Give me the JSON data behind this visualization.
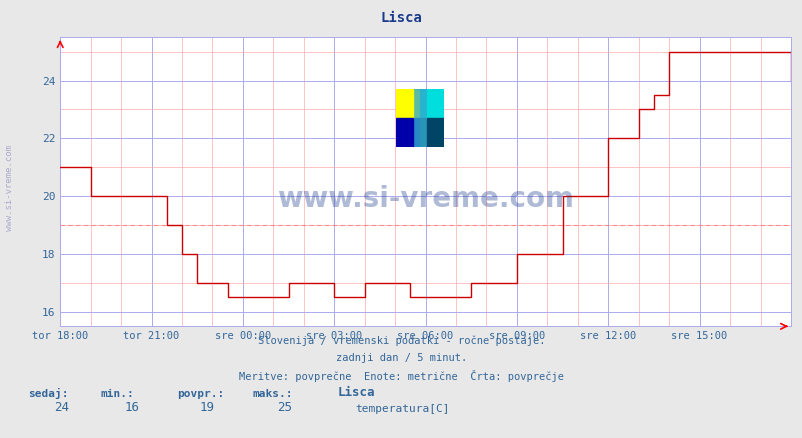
{
  "title": "Lisca",
  "title_color": "#1a3a8a",
  "bg_color": "#e8e8e8",
  "plot_bg_color": "#ffffff",
  "grid_color_major": "#aaaaee",
  "grid_color_minor": "#ffaaaa",
  "line_color": "#cc0000",
  "avg_line_color": "#ff8888",
  "avg_value": 19,
  "ylim": [
    15.5,
    25.5
  ],
  "yticks": [
    16,
    18,
    20,
    22,
    24
  ],
  "tick_color": "#336699",
  "watermark": "www.si-vreme.com",
  "watermark_color": "#1a3a8a",
  "watermark_alpha": 0.35,
  "footer_line1": "Slovenija / vremenski podatki - ročne postaje.",
  "footer_line2": "zadnji dan / 5 minut.",
  "footer_line3": "Meritve: povprečne  Enote: metrične  Črta: povprečje",
  "footer_color": "#336699",
  "stats_labels": [
    "sedaj:",
    "min.:",
    "povpr.:",
    "maks.:"
  ],
  "stats_values": [
    "24",
    "16",
    "19",
    "25"
  ],
  "legend_title": "Lisca",
  "legend_label": "temperatura[C]",
  "legend_color": "#cc0000",
  "sidebar_text": "www.si-vreme.com",
  "sidebar_color": "#aaaacc",
  "x_tick_labels": [
    "tor 18:00",
    "tor 21:00",
    "sre 00:00",
    "sre 03:00",
    "sre 06:00",
    "sre 09:00",
    "sre 12:00",
    "sre 15:00"
  ],
  "x_tick_positions": [
    0,
    36,
    72,
    108,
    144,
    180,
    216,
    252
  ],
  "total_points": 289,
  "temperature_data": [
    21,
    21,
    21,
    21,
    21,
    21,
    21,
    21,
    21,
    21,
    21,
    21,
    20,
    20,
    20,
    20,
    20,
    20,
    20,
    20,
    20,
    20,
    20,
    20,
    20,
    20,
    20,
    20,
    20,
    20,
    20,
    20,
    20,
    20,
    20,
    20,
    20,
    20,
    20,
    20,
    20,
    20,
    19,
    19,
    19,
    19,
    19,
    19,
    18,
    18,
    18,
    18,
    18,
    18,
    17,
    17,
    17,
    17,
    17,
    17,
    17,
    17,
    17,
    17,
    17,
    17,
    16.5,
    16.5,
    16.5,
    16.5,
    16.5,
    16.5,
    16.5,
    16.5,
    16.5,
    16.5,
    16.5,
    16.5,
    16.5,
    16.5,
    16.5,
    16.5,
    16.5,
    16.5,
    16.5,
    16.5,
    16.5,
    16.5,
    16.5,
    16.5,
    17,
    17,
    17,
    17,
    17,
    17,
    17,
    17,
    17,
    17,
    17,
    17,
    17,
    17,
    17,
    17,
    17,
    17,
    16.5,
    16.5,
    16.5,
    16.5,
    16.5,
    16.5,
    16.5,
    16.5,
    16.5,
    16.5,
    16.5,
    16.5,
    17,
    17,
    17,
    17,
    17,
    17,
    17,
    17,
    17,
    17,
    17,
    17,
    17,
    17,
    17,
    17,
    17,
    17,
    16.5,
    16.5,
    16.5,
    16.5,
    16.5,
    16.5,
    16.5,
    16.5,
    16.5,
    16.5,
    16.5,
    16.5,
    16.5,
    16.5,
    16.5,
    16.5,
    16.5,
    16.5,
    16.5,
    16.5,
    16.5,
    16.5,
    16.5,
    16.5,
    17,
    17,
    17,
    17,
    17,
    17,
    17,
    17,
    17,
    17,
    17,
    17,
    17,
    17,
    17,
    17,
    17,
    17,
    18,
    18,
    18,
    18,
    18,
    18,
    18,
    18,
    18,
    18,
    18,
    18,
    18,
    18,
    18,
    18,
    18,
    18,
    20,
    20,
    20,
    20,
    20,
    20,
    20,
    20,
    20,
    20,
    20,
    20,
    20,
    20,
    20,
    20,
    20,
    20,
    22,
    22,
    22,
    22,
    22,
    22,
    22,
    22,
    22,
    22,
    22,
    22,
    23,
    23,
    23,
    23,
    23,
    23,
    23.5,
    23.5,
    23.5,
    23.5,
    23.5,
    23.5,
    25,
    25,
    25,
    25,
    25,
    25,
    25,
    25,
    25,
    25,
    25,
    25,
    25,
    25,
    25,
    25,
    25,
    25,
    25,
    25,
    25,
    25,
    25,
    25,
    25,
    25,
    25,
    25,
    25,
    25,
    25,
    25,
    25,
    25,
    25,
    25,
    25,
    25,
    25,
    25,
    25,
    25,
    25,
    25,
    25,
    25,
    25,
    25,
    24,
    24
  ]
}
